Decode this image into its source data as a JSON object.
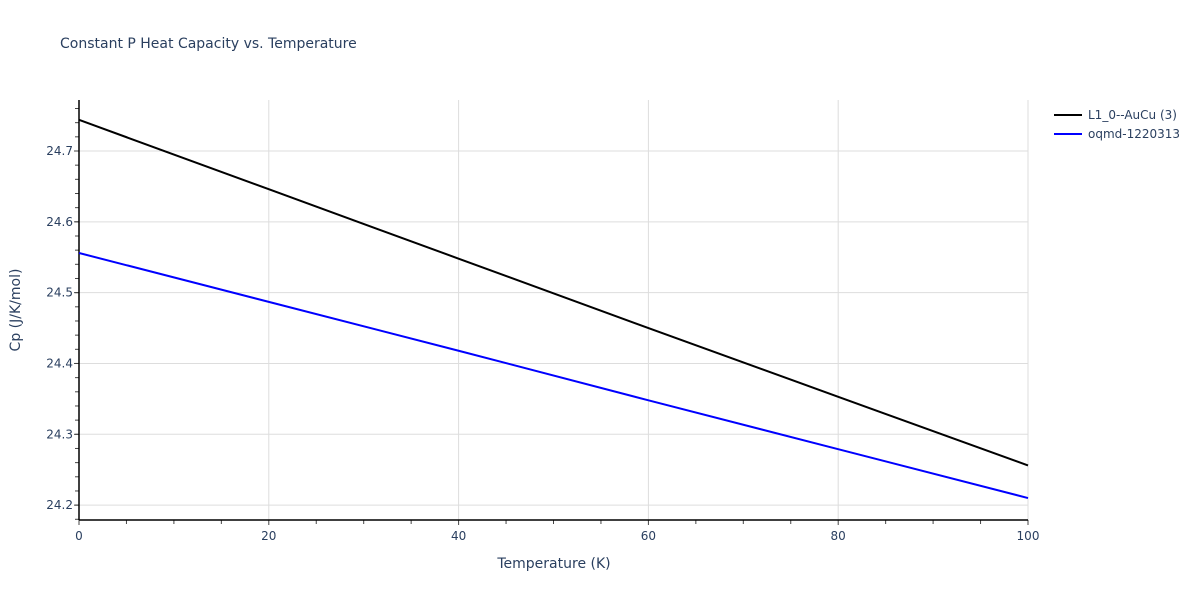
{
  "chart_data": {
    "type": "line",
    "title": "Constant P Heat Capacity vs. Temperature",
    "xlabel": "Temperature (K)",
    "ylabel": "Cp (J/K/mol)",
    "xlim": [
      0,
      100
    ],
    "ylim": [
      24.179,
      24.772
    ],
    "x_ticks": [
      0,
      20,
      40,
      60,
      80,
      100
    ],
    "y_ticks": [
      24.2,
      24.3,
      24.4,
      24.5,
      24.6,
      24.7
    ],
    "grid": true,
    "legend_position": "top-right-outside",
    "series": [
      {
        "name": "L1_0--AuCu (3)",
        "color": "#000000",
        "x": [
          0,
          20,
          40,
          60,
          80,
          100
        ],
        "values": [
          24.744,
          24.646,
          24.548,
          24.45,
          24.353,
          24.256
        ]
      },
      {
        "name": "oqmd-1220313",
        "color": "#0000ff",
        "x": [
          0,
          20,
          40,
          60,
          80,
          100
        ],
        "values": [
          24.556,
          24.487,
          24.418,
          24.348,
          24.279,
          24.21
        ]
      }
    ]
  }
}
